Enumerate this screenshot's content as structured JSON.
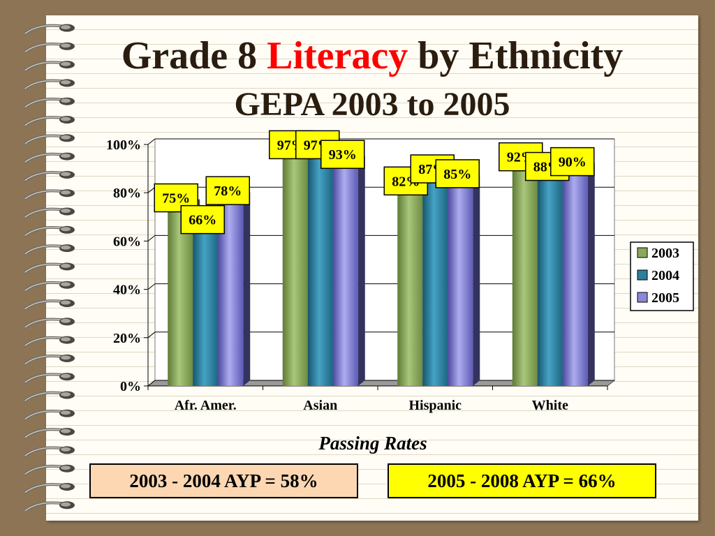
{
  "slide": {
    "title_pre": "Grade 8 ",
    "title_accent": "Literacy",
    "title_post": " by Ethnicity",
    "subtitle": "GEPA 2003 to 2005",
    "ayp_2003_2004": "2003 - 2004 AYP = 58%",
    "ayp_2005_2008": "2005 - 2008 AYP = 66%"
  },
  "colors": {
    "accent": "#ff0000",
    "series_2003": "#8ba85a",
    "series_2004": "#2c7f9c",
    "series_2005": "#8a88d8",
    "label_box": "#ffff00",
    "ayp_box_1": "#fcd7b2",
    "ayp_box_2": "#ffff00"
  },
  "chart_data": {
    "type": "bar",
    "subtype": "clustered-3d",
    "categories": [
      "Afr. Amer.",
      "Asian",
      "Hispanic",
      "White"
    ],
    "series": [
      {
        "name": "2003",
        "values": [
          75,
          97,
          82,
          92
        ]
      },
      {
        "name": "2004",
        "values": [
          66,
          97,
          87,
          88
        ]
      },
      {
        "name": "2005",
        "values": [
          78,
          93,
          85,
          90
        ]
      }
    ],
    "value_labels": [
      [
        "75%",
        "97%",
        "82%",
        "92%"
      ],
      [
        "66%",
        "97%",
        "87%",
        "88%"
      ],
      [
        "78%",
        "93%",
        "85%",
        "90%"
      ]
    ],
    "ylim": [
      0,
      100
    ],
    "yticks": [
      0,
      20,
      40,
      60,
      80,
      100
    ],
    "ytick_labels": [
      "0%",
      "20%",
      "40%",
      "60%",
      "80%",
      "100%"
    ],
    "xlabel": "Passing Rates",
    "ylabel": "",
    "legend": [
      "2003",
      "2004",
      "2005"
    ],
    "legend_position": "right",
    "grid": true
  }
}
